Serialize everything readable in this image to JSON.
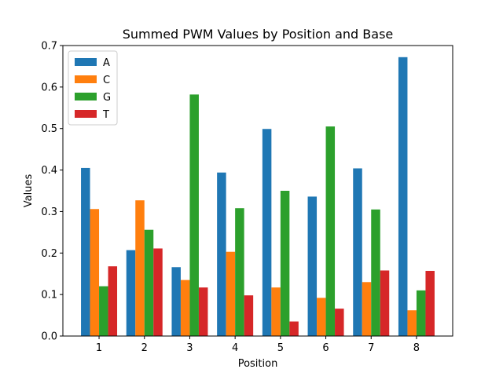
{
  "chart_data": {
    "type": "bar",
    "title": "Summed PWM Values by Position and Base",
    "xlabel": "Position",
    "ylabel": "Values",
    "categories": [
      "1",
      "2",
      "3",
      "4",
      "5",
      "6",
      "7",
      "8"
    ],
    "ylim": [
      0,
      0.7
    ],
    "yticks": [
      "0.0",
      "0.1",
      "0.2",
      "0.3",
      "0.4",
      "0.5",
      "0.6",
      "0.7"
    ],
    "grid": false,
    "legend_position": "top-left",
    "series": [
      {
        "name": "A",
        "color": "#1f77b4",
        "values": [
          0.405,
          0.207,
          0.166,
          0.394,
          0.499,
          0.336,
          0.404,
          0.672
        ]
      },
      {
        "name": "C",
        "color": "#ff7f0e",
        "values": [
          0.306,
          0.327,
          0.135,
          0.203,
          0.117,
          0.092,
          0.13,
          0.062
        ]
      },
      {
        "name": "G",
        "color": "#2ca02c",
        "values": [
          0.12,
          0.256,
          0.582,
          0.308,
          0.35,
          0.505,
          0.305,
          0.11
        ]
      },
      {
        "name": "T",
        "color": "#d62728",
        "values": [
          0.168,
          0.211,
          0.117,
          0.098,
          0.035,
          0.066,
          0.158,
          0.157
        ]
      }
    ]
  }
}
